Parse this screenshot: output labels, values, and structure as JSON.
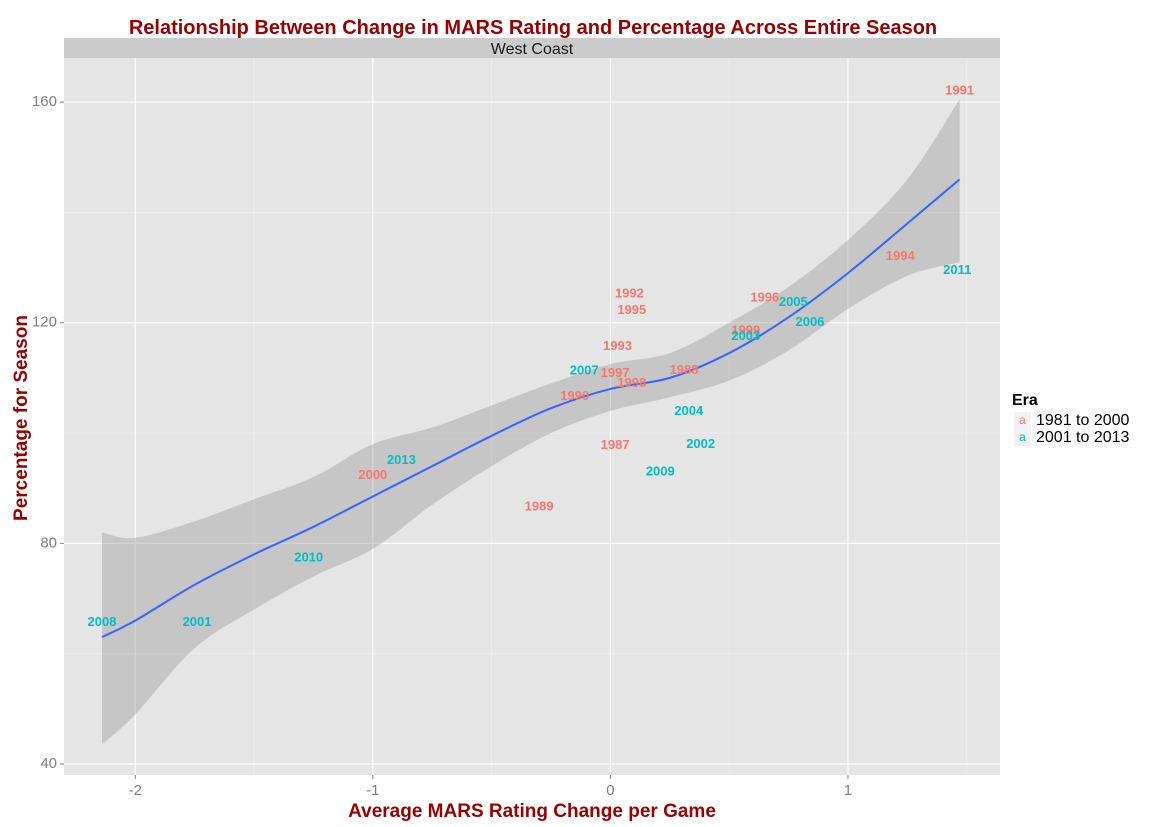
{
  "chart_data": {
    "type": "scatter",
    "title": "Relationship Between Change in MARS Rating and Percentage Across Entire Season",
    "facet": "West Coast",
    "xlabel": "Average MARS Rating Change per Game",
    "ylabel": "Percentage for Season",
    "xlim": [
      -2.3,
      1.64
    ],
    "ylim": [
      38,
      168
    ],
    "x_ticks": [
      -2,
      -1,
      0,
      1
    ],
    "x_tick_labels": [
      "-2",
      "-1",
      "0",
      "1"
    ],
    "y_ticks": [
      40,
      80,
      120,
      160
    ],
    "y_tick_labels": [
      "40",
      "80",
      "120",
      "160"
    ],
    "grid": true,
    "legend": {
      "title": "Era",
      "position": "right",
      "key_glyph": "a",
      "entries": [
        {
          "label": "1981 to 2000",
          "color": "#F8766D"
        },
        {
          "label": "2001 to 2013",
          "color": "#00BFC4"
        }
      ]
    },
    "points": [
      {
        "label": "1991",
        "x": 1.47,
        "y": 162.0,
        "era": 0
      },
      {
        "label": "1994",
        "x": 1.22,
        "y": 132.0,
        "era": 0
      },
      {
        "label": "2011",
        "x": 1.46,
        "y": 129.5,
        "era": 1
      },
      {
        "label": "1996",
        "x": 0.65,
        "y": 124.5,
        "era": 0
      },
      {
        "label": "2005",
        "x": 0.77,
        "y": 123.7,
        "era": 1
      },
      {
        "label": "2006",
        "x": 0.84,
        "y": 120.0,
        "era": 1
      },
      {
        "label": "1999",
        "x": 0.57,
        "y": 118.5,
        "era": 0
      },
      {
        "label": "2003",
        "x": 0.57,
        "y": 117.5,
        "era": 1
      },
      {
        "label": "1992",
        "x": 0.08,
        "y": 125.2,
        "era": 0
      },
      {
        "label": "1995",
        "x": 0.09,
        "y": 122.2,
        "era": 0
      },
      {
        "label": "1993",
        "x": 0.03,
        "y": 115.7,
        "era": 0
      },
      {
        "label": "1997",
        "x": 0.02,
        "y": 110.8,
        "era": 0
      },
      {
        "label": "2007",
        "x": -0.11,
        "y": 111.2,
        "era": 1
      },
      {
        "label": "1998",
        "x": 0.09,
        "y": 109.0,
        "era": 0
      },
      {
        "label": "1988",
        "x": 0.31,
        "y": 111.3,
        "era": 0
      },
      {
        "label": "1990",
        "x": -0.15,
        "y": 106.6,
        "era": 0
      },
      {
        "label": "2004",
        "x": 0.33,
        "y": 103.9,
        "era": 1
      },
      {
        "label": "1987",
        "x": 0.02,
        "y": 97.7,
        "era": 0
      },
      {
        "label": "2002",
        "x": 0.38,
        "y": 97.9,
        "era": 1
      },
      {
        "label": "2009",
        "x": 0.21,
        "y": 92.9,
        "era": 1
      },
      {
        "label": "2013",
        "x": -0.88,
        "y": 95.0,
        "era": 1
      },
      {
        "label": "2000",
        "x": -1.0,
        "y": 92.3,
        "era": 0
      },
      {
        "label": "1989",
        "x": -0.3,
        "y": 86.6,
        "era": 0
      },
      {
        "label": "2010",
        "x": -1.27,
        "y": 77.3,
        "era": 1
      },
      {
        "label": "2008",
        "x": -2.14,
        "y": 65.6,
        "era": 1
      },
      {
        "label": "2001",
        "x": -1.74,
        "y": 65.6,
        "era": 1
      }
    ],
    "smooth": {
      "color": "#3366FF",
      "ribbon_color": "#999999",
      "points": [
        {
          "x": -2.14,
          "y": 63,
          "lo": 43.5,
          "hi": 82
        },
        {
          "x": -2.0,
          "y": 66,
          "lo": 49,
          "hi": 81
        },
        {
          "x": -1.75,
          "y": 72.5,
          "lo": 61,
          "hi": 84
        },
        {
          "x": -1.5,
          "y": 78,
          "lo": 68,
          "hi": 88
        },
        {
          "x": -1.25,
          "y": 83,
          "lo": 74,
          "hi": 92
        },
        {
          "x": -1.0,
          "y": 88.5,
          "lo": 79,
          "hi": 98
        },
        {
          "x": -0.75,
          "y": 94,
          "lo": 87,
          "hi": 101
        },
        {
          "x": -0.5,
          "y": 99.5,
          "lo": 94,
          "hi": 105
        },
        {
          "x": -0.25,
          "y": 104.5,
          "lo": 100,
          "hi": 109
        },
        {
          "x": 0.0,
          "y": 108,
          "lo": 104,
          "hi": 112.5
        },
        {
          "x": 0.25,
          "y": 110,
          "lo": 106.5,
          "hi": 114.5
        },
        {
          "x": 0.5,
          "y": 114.5,
          "lo": 109.5,
          "hi": 120
        },
        {
          "x": 0.75,
          "y": 121,
          "lo": 115,
          "hi": 126.5
        },
        {
          "x": 1.0,
          "y": 129,
          "lo": 122.5,
          "hi": 135
        },
        {
          "x": 1.25,
          "y": 138,
          "lo": 128.5,
          "hi": 146
        },
        {
          "x": 1.47,
          "y": 146,
          "lo": 131,
          "hi": 160.5
        }
      ]
    }
  }
}
